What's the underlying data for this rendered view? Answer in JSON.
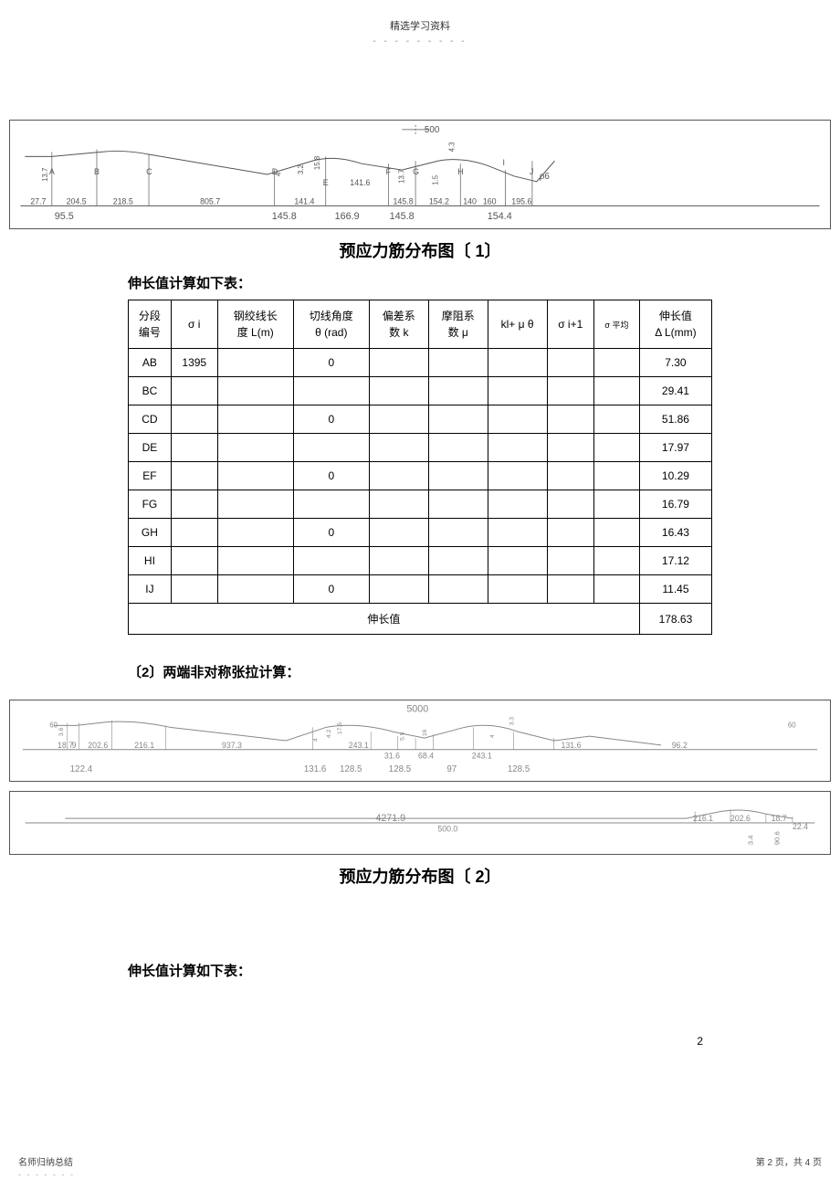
{
  "header": {
    "title": "精选学习资料",
    "dots": "- - - - - - - - -"
  },
  "caption1": "预应力筋分布图〔 1〕",
  "pre_caption1": "伸长值计算如下表：",
  "caption2": "预应力筋分布图〔 2〕",
  "section2_label": "〔2〕两端非对称张拉计算：",
  "post_caption2": "伸长值计算如下表：",
  "table1": {
    "columns": [
      {
        "l1": "分段",
        "l2": "编号"
      },
      {
        "l1": "σ i",
        "l2": ""
      },
      {
        "l1": "钢绞线长",
        "l2": "度 L(m)"
      },
      {
        "l1": "切线角度",
        "l2": "θ  (rad)"
      },
      {
        "l1": "偏差系",
        "l2": "数 k"
      },
      {
        "l1": "摩阻系",
        "l2": "数 μ"
      },
      {
        "l1": "kl+ μ θ",
        "l2": ""
      },
      {
        "l1": "σ i+1",
        "l2": ""
      },
      {
        "l1": "σ 平均",
        "l2": ""
      },
      {
        "l1": "伸长值",
        "l2": "Δ L(mm)"
      }
    ],
    "rows": [
      [
        "AB",
        "1395",
        "",
        "0",
        "",
        "",
        "",
        "",
        "",
        "7.30"
      ],
      [
        "BC",
        "",
        "",
        "",
        "",
        "",
        "",
        "",
        "",
        "29.41"
      ],
      [
        "CD",
        "",
        "",
        "0",
        "",
        "",
        "",
        "",
        "",
        "51.86"
      ],
      [
        "DE",
        "",
        "",
        "",
        "",
        "",
        "",
        "",
        "",
        "17.97"
      ],
      [
        "EF",
        "",
        "",
        "0",
        "",
        "",
        "",
        "",
        "",
        "10.29"
      ],
      [
        "FG",
        "",
        "",
        "",
        "",
        "",
        "",
        "",
        "",
        "16.79"
      ],
      [
        "GH",
        "",
        "",
        "0",
        "",
        "",
        "",
        "",
        "",
        "16.43"
      ],
      [
        "HI",
        "",
        "",
        "",
        "",
        "",
        "",
        "",
        "",
        "17.12"
      ],
      [
        "IJ",
        "",
        "",
        "0",
        "",
        "",
        "",
        "",
        "",
        "11.45"
      ]
    ],
    "total_label": "伸长值",
    "total_value": "178.63"
  },
  "diagram1": {
    "top_dim": "500",
    "nodes_top": [
      "A",
      "B",
      "C",
      "D",
      "E",
      "F",
      "G",
      "H",
      "I",
      "J"
    ],
    "dims_upper": [
      "27.7",
      "204.5",
      "218.5",
      "805.7",
      "141.4",
      "141.6",
      "145.8",
      "154.2",
      "140",
      "160",
      "195.6"
    ],
    "dims_lower_left": "95.5",
    "dims_lower_mid": [
      "145.8",
      "166.9",
      "145.8",
      "154.4"
    ],
    "heights": [
      "13.7",
      "4",
      "3.2",
      "15.8",
      "13.7",
      "1.5",
      "4.3"
    ],
    "rho": "ρ6"
  },
  "diagram2": {
    "top_dim": "5000",
    "anchor_left": "60",
    "anchor_right": "60",
    "dims_top_row": [
      "18.7",
      "9",
      "202.6",
      "216.1",
      "937.3",
      "243.1",
      "31.6",
      "68.4",
      "243.1",
      "131.6",
      "96.2"
    ],
    "dims_mid_row": [
      "122.4",
      "131.6",
      "128.5",
      "128.5",
      "97",
      "128.5"
    ],
    "heights_left": [
      "3.6",
      "4",
      "4.2",
      "17.5",
      "5.5",
      "16",
      "4",
      "3.3"
    ],
    "bottom_len": "4271.9",
    "bottom_dim": "500.0",
    "bottom_right_dims": [
      "216.1",
      "202.6",
      "18.7",
      "22.4"
    ],
    "bottom_right_heights": [
      "3.4",
      "90.6"
    ]
  },
  "page_num": "2",
  "footer": {
    "left": "名师归纳总结",
    "left_dots": "- - - - - - -",
    "right": "第 2 页，共 4 页"
  }
}
